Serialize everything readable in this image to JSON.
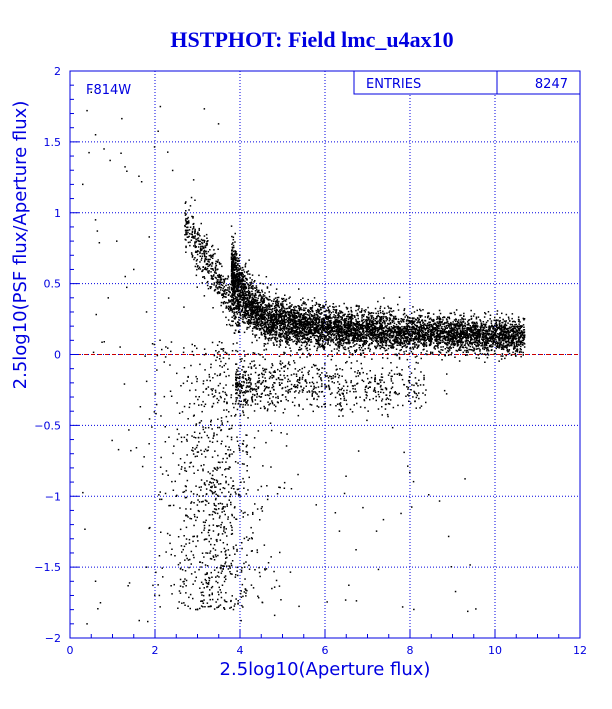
{
  "chart_data": {
    "type": "scatter",
    "title": "HSTPHOT: Field lmc_u4ax10",
    "xlabel": "2.5log10(Aperture flux)",
    "ylabel": "2.5log10(PSF flux/Aperture flux)",
    "xlim": [
      0,
      12
    ],
    "ylim": [
      -2,
      2
    ],
    "x_ticks": [
      "0",
      "2",
      "4",
      "6",
      "8",
      "10",
      "12"
    ],
    "y_ticks": [
      "-2",
      "-1.5",
      "-1",
      "-0.5",
      "0",
      "0.5",
      "1",
      "1.5",
      "2"
    ],
    "grid": true,
    "reference_line": {
      "y": 0,
      "style": "dashed",
      "color": "#cc0000"
    },
    "stats_box": {
      "label": "ENTRIES",
      "value": "8247"
    },
    "annotation": "F814W",
    "point_color": "#000000",
    "series": [
      {
        "description_points": [
          [
            0.5,
            1.85
          ],
          [
            0.4,
            1.72
          ],
          [
            0.6,
            1.55
          ],
          [
            0.8,
            1.45
          ],
          [
            1.2,
            1.42
          ],
          [
            0.3,
            1.2
          ],
          [
            0.6,
            0.95
          ],
          [
            1.1,
            0.8
          ],
          [
            1.3,
            0.55
          ],
          [
            0.9,
            0.4
          ],
          [
            1.5,
            0.6
          ],
          [
            1.8,
            0.3
          ],
          [
            2.8,
            1.02
          ],
          [
            3.0,
            0.85
          ],
          [
            3.2,
            0.6
          ],
          [
            3.4,
            0.45
          ],
          [
            3.6,
            0.3
          ],
          [
            3.9,
            0.22
          ],
          [
            4.5,
            0.2
          ],
          [
            5.5,
            0.18
          ],
          [
            6.5,
            0.15
          ],
          [
            7.5,
            0.13
          ],
          [
            8.5,
            0.14
          ],
          [
            9.5,
            0.15
          ],
          [
            10.5,
            0.17
          ],
          [
            4.2,
            -0.2
          ],
          [
            4.8,
            -0.25
          ],
          [
            3.8,
            -0.6
          ],
          [
            3.5,
            -1.0
          ],
          [
            3.2,
            -1.4
          ],
          [
            3.0,
            -1.8
          ],
          [
            2.5,
            -1.0
          ],
          [
            1.8,
            -1.5
          ],
          [
            0.6,
            -1.6
          ],
          [
            0.4,
            -1.9
          ]
        ]
      }
    ]
  }
}
